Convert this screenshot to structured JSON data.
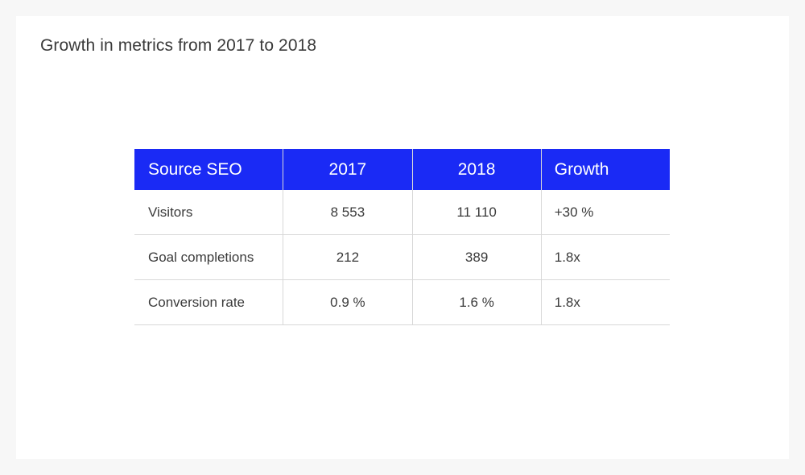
{
  "title": "Growth in metrics from 2017 to 2018",
  "colors": {
    "header_bg": "#1a2af5",
    "header_text": "#ffffff",
    "body_text": "#3a3a3a",
    "grid": "#d8d8d8"
  },
  "table": {
    "headers": [
      "Source SEO",
      "2017",
      "2018",
      "Growth"
    ],
    "rows": [
      [
        "Visitors",
        "8 553",
        "11 110",
        "+30 %"
      ],
      [
        "Goal completions",
        "212",
        "389",
        "1.8x"
      ],
      [
        "Conversion rate",
        "0.9 %",
        "1.6 %",
        "1.8x"
      ]
    ]
  }
}
